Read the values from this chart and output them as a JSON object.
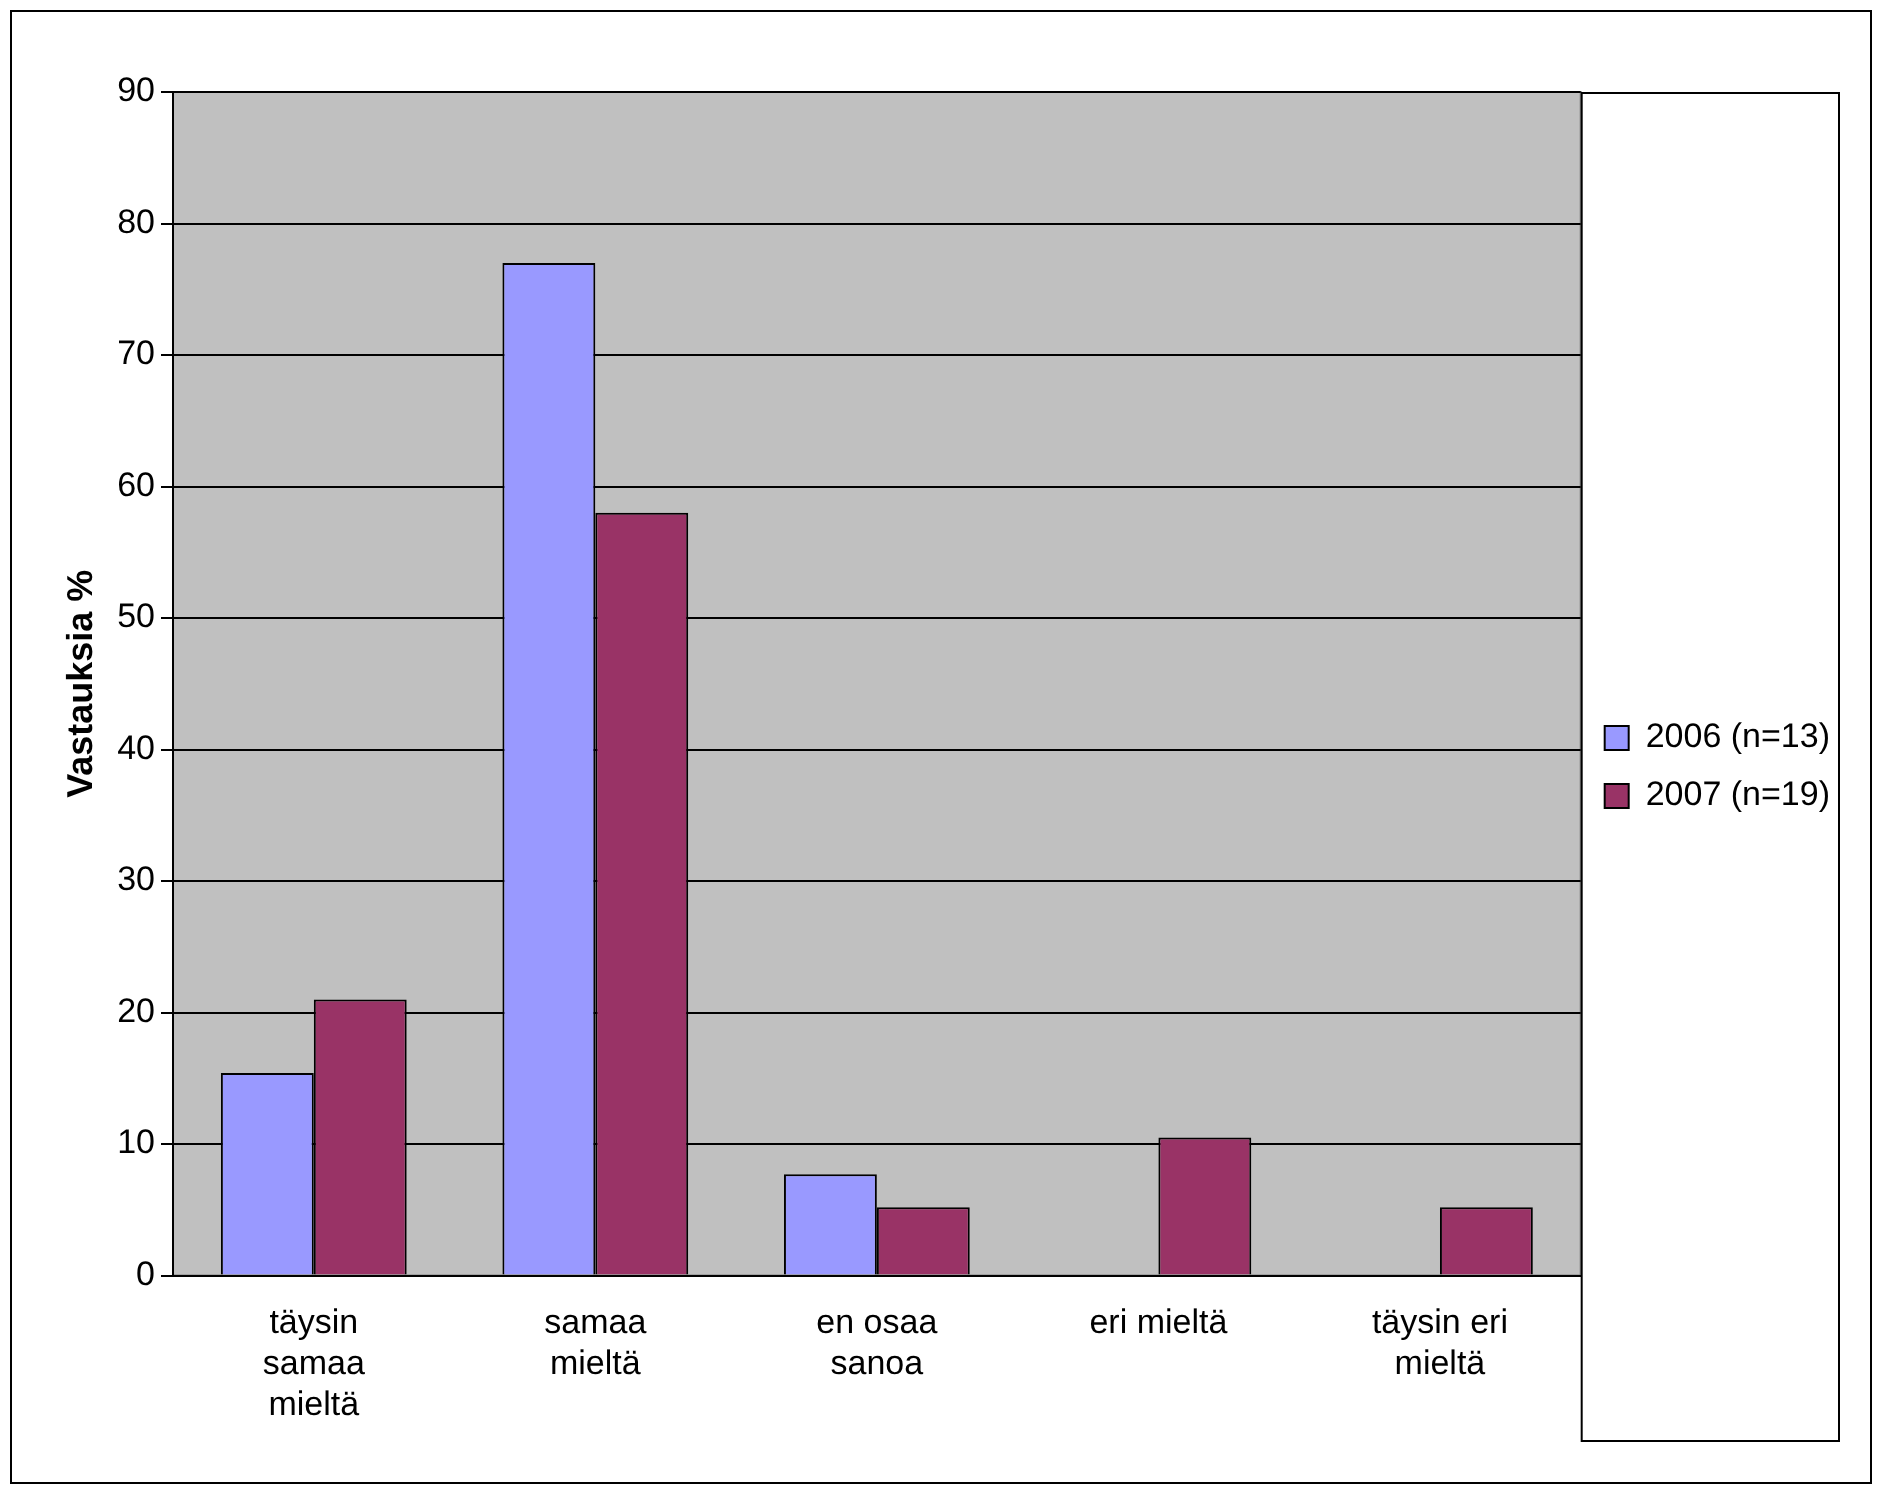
{
  "chart_data": {
    "type": "bar",
    "ylabel": "Vastauksia %",
    "categories": [
      "täysin samaa mieltä",
      "samaa mieltä",
      "en osaa sanoa",
      "eri mieltä",
      "täysin eri mieltä"
    ],
    "series": [
      {
        "name": "2006 (n=13)",
        "color": "#9999ff",
        "values": [
          15.4,
          77,
          7.7,
          0,
          0
        ]
      },
      {
        "name": "2007 (n=19)",
        "color": "#993366",
        "values": [
          21,
          58,
          5.2,
          10.5,
          5.2
        ]
      }
    ],
    "ylim": [
      0,
      90
    ],
    "yticks": [
      0,
      10,
      20,
      30,
      40,
      50,
      60,
      70,
      80,
      90
    ],
    "grid": "y",
    "legend": "right"
  }
}
